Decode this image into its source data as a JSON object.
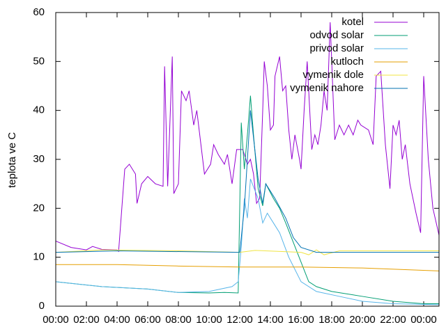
{
  "chart_data": {
    "type": "line",
    "y_label": "teplota ve C",
    "xlim": [
      0,
      25
    ],
    "xticks": [
      {
        "value": 0,
        "label": "00:00"
      },
      {
        "value": 2,
        "label": "02:00"
      },
      {
        "value": 4,
        "label": "04:00"
      },
      {
        "value": 6,
        "label": "06:00"
      },
      {
        "value": 8,
        "label": "08:00"
      },
      {
        "value": 10,
        "label": "10:00"
      },
      {
        "value": 12,
        "label": "12:00"
      },
      {
        "value": 14,
        "label": "14:00"
      },
      {
        "value": 16,
        "label": "16:00"
      },
      {
        "value": 18,
        "label": "18:00"
      },
      {
        "value": 20,
        "label": "20:00"
      },
      {
        "value": 22,
        "label": "22:00"
      },
      {
        "value": 24,
        "label": "00:00"
      }
    ],
    "ylim": [
      0,
      60
    ],
    "yticks": [
      0,
      10,
      20,
      30,
      40,
      50,
      60
    ],
    "legend": "top-right",
    "series": [
      {
        "name": "kotel",
        "color": "#9400d3",
        "x": [
          0,
          1,
          2,
          2.4,
          3,
          4,
          4.1,
          4.5,
          4.8,
          5.2,
          5.3,
          5.6,
          6,
          6.5,
          7,
          7.1,
          7.3,
          7.6,
          7.7,
          8,
          8.2,
          8.5,
          8.7,
          9,
          9.2,
          9.7,
          10.1,
          10.3,
          10.6,
          11,
          11.2,
          11.5,
          11.8,
          12.2,
          12.5,
          12.7,
          12.9,
          13.1,
          13.3,
          13.5,
          13.6,
          13.8,
          14,
          14.2,
          14.3,
          14.6,
          14.8,
          15,
          15.2,
          15.4,
          15.6,
          15.9,
          16,
          16.2,
          16.4,
          16.7,
          16.9,
          17.1,
          17.3,
          17.5,
          17.7,
          17.9,
          18.2,
          18.5,
          18.8,
          19.1,
          19.4,
          19.7,
          19.9,
          20.4,
          20.7,
          20.9,
          21.2,
          21.5,
          21.8,
          22,
          22.2,
          22.4,
          22.6,
          22.8,
          23.1,
          23.5,
          23.8,
          24,
          24.3,
          24.6,
          25
        ],
        "values": [
          13.3,
          12,
          11.5,
          12.2,
          11.6,
          11.5,
          11.2,
          28,
          29,
          27,
          21,
          25,
          26.5,
          25,
          24.5,
          49,
          24.5,
          51,
          23,
          25,
          44,
          42,
          44,
          37,
          40,
          27,
          29,
          33,
          31,
          29,
          31,
          25,
          32,
          32,
          29,
          30,
          27,
          21,
          22,
          40,
          50,
          45,
          36,
          37,
          47,
          51,
          44,
          45,
          36,
          30,
          35,
          30,
          28,
          40,
          50,
          32,
          35,
          33,
          37,
          44,
          40,
          58,
          34,
          37,
          35,
          37,
          35,
          38,
          37,
          36,
          33,
          47,
          48,
          33,
          24,
          37,
          35,
          38,
          30,
          33,
          25,
          19,
          15,
          47,
          30,
          20,
          14.5
        ]
      },
      {
        "name": "odvod solar",
        "color": "#009e73",
        "x": [
          0,
          3,
          6,
          8,
          10,
          11,
          11.9,
          12.1,
          12.3,
          12.5,
          12.7,
          12.9,
          13.2,
          13.5,
          13.7,
          14.2,
          14.6,
          15,
          15.5,
          16,
          16.5,
          17,
          18,
          20,
          22,
          24,
          25
        ],
        "values": [
          5,
          4,
          3.5,
          2.8,
          2.7,
          2.8,
          2.7,
          37.5,
          28,
          35,
          43,
          35,
          24,
          20.5,
          25,
          22,
          20,
          17,
          13,
          9,
          5,
          4,
          3,
          2,
          1,
          0.5,
          0.5
        ]
      },
      {
        "name": "privod solar",
        "color": "#56b4e9",
        "x": [
          0,
          3,
          6,
          8,
          10,
          11.5,
          11.9,
          12.1,
          12.3,
          12.5,
          12.7,
          13.2,
          13.5,
          13.8,
          14.2,
          14.6,
          15.2,
          16,
          17,
          18.5,
          20,
          22,
          25
        ],
        "values": [
          5,
          4,
          3.5,
          2.8,
          3,
          4,
          5,
          12,
          22,
          18,
          26,
          22,
          17,
          19,
          17,
          15,
          10,
          5,
          3,
          2,
          1,
          0.5,
          0.3
        ]
      },
      {
        "name": "kutloch",
        "color": "#e69f00",
        "x": [
          0,
          4,
          8,
          12,
          16,
          20,
          25
        ],
        "values": [
          8.5,
          8.5,
          8.2,
          8,
          8,
          7.8,
          7.2
        ]
      },
      {
        "name": "vymenik dole",
        "color": "#f0e442",
        "x": [
          0,
          3,
          8,
          12,
          13,
          16,
          16.5,
          17,
          17.5,
          18.5,
          25
        ],
        "values": [
          11,
          11.5,
          11.3,
          11,
          11.4,
          11,
          10.5,
          11.5,
          10.5,
          11.3,
          11.3
        ]
      },
      {
        "name": "vymenik nahore",
        "color": "#0072b2",
        "x": [
          0,
          4,
          12,
          12.3,
          12.7,
          13.2,
          13.5,
          13.7,
          14.3,
          15,
          15.5,
          16,
          17,
          25
        ],
        "values": [
          11,
          11.3,
          11,
          20,
          40,
          26,
          21,
          25,
          22,
          18,
          14,
          12,
          11,
          11
        ]
      }
    ]
  }
}
